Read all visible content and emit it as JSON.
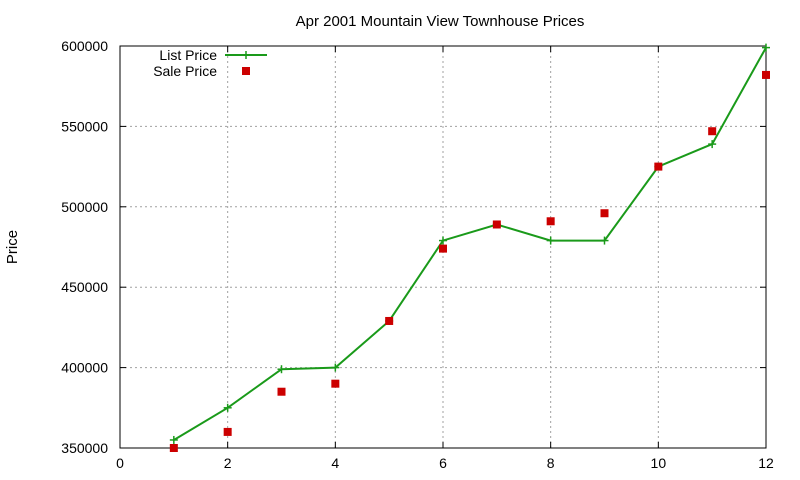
{
  "chart_data": {
    "type": "line",
    "title": "Apr 2001 Mountain View Townhouse Prices",
    "xlabel": "",
    "ylabel": "Price",
    "xlim": [
      0,
      12
    ],
    "ylim": [
      350000,
      600000
    ],
    "xticks": [
      0,
      2,
      4,
      6,
      8,
      10,
      12
    ],
    "yticks": [
      350000,
      400000,
      450000,
      500000,
      550000,
      600000
    ],
    "grid": true,
    "legend_position": "top-left",
    "series": [
      {
        "name": "List Price",
        "style": "linespoints",
        "marker": "plus",
        "color": "#1a9a1a",
        "x": [
          1,
          2,
          3,
          4,
          5,
          6,
          7,
          8,
          9,
          10,
          11,
          12
        ],
        "y": [
          355000,
          375000,
          399000,
          400000,
          429000,
          479000,
          489000,
          479000,
          479000,
          525000,
          539000,
          599000
        ]
      },
      {
        "name": "Sale Price",
        "style": "points",
        "marker": "square",
        "color": "#cc0000",
        "x": [
          1,
          2,
          3,
          4,
          5,
          6,
          7,
          8,
          9,
          10,
          11,
          12
        ],
        "y": [
          350000,
          360000,
          385000,
          390000,
          429000,
          474000,
          489000,
          491000,
          496000,
          525000,
          547000,
          582000
        ]
      }
    ]
  }
}
